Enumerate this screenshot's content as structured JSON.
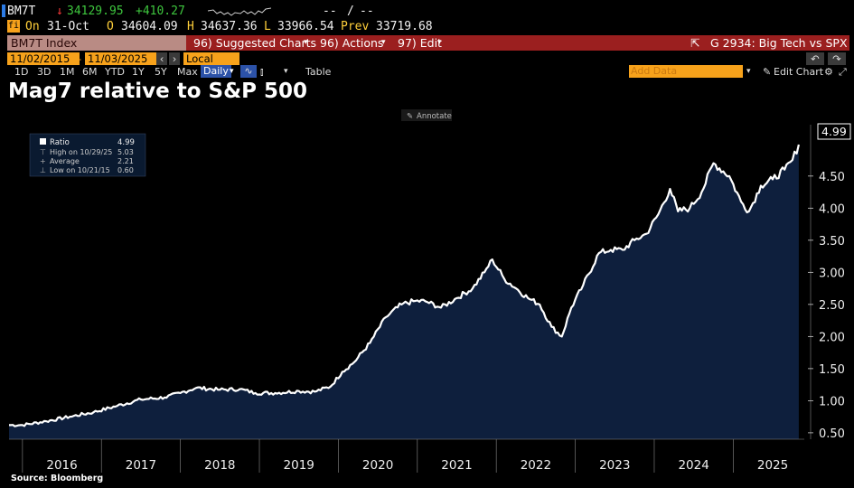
{
  "ticker": {
    "symbol": "BM7T",
    "arrow": "↓",
    "last": "34129.95",
    "change": "+410.27",
    "dash1": "--",
    "slash": "/",
    "dash2": "--"
  },
  "quote": {
    "icon_label": "fi",
    "on_label": "On",
    "date": "31-Oct",
    "open_label": "O",
    "open": "34604.09",
    "high_label": "H",
    "high": "34637.36",
    "low_label": "L",
    "low": "33966.54",
    "prev_label": "Prev",
    "prev": "33719.68"
  },
  "toolbar": {
    "index": "BM7T Index",
    "suggested": "96) Suggested Charts",
    "actions": "96) Actions",
    "edit": "97) Edit",
    "chart_name": "G 2934: Big Tech vs SPX"
  },
  "dates": {
    "start": "11/02/2015",
    "end": "11/03/2025",
    "currency": "Local CCY"
  },
  "periods": [
    "1D",
    "3D",
    "1M",
    "6M",
    "YTD",
    "1Y",
    "5Y",
    "Max"
  ],
  "frequency": "Daily",
  "table_label": "Table",
  "add_data_placeholder": "Add Data",
  "edit_chart": "Edit Chart",
  "annotate": "Annotate",
  "title": "Mag7 relative to S&P 500",
  "source": "Source: Bloomberg",
  "legend": {
    "ratio_label": "Ratio",
    "ratio_value": "4.99",
    "high_label": "High on 10/29/25",
    "high_value": "5.03",
    "avg_label": "Average",
    "avg_value": "2.21",
    "low_label": "Low on 10/21/15",
    "low_value": "0.60"
  },
  "colors": {
    "line": "#ffffff",
    "fill": "#0e1f3d",
    "accent": "#f7a21b",
    "toolbar_red": "#9b1f1f"
  },
  "chart_data": {
    "type": "area",
    "title": "Mag7 relative to S&P 500",
    "series": [
      {
        "name": "Ratio",
        "x": [
          2015.83,
          2016.0,
          2016.3,
          2016.6,
          2016.9,
          2017.2,
          2017.5,
          2017.8,
          2018.0,
          2018.2,
          2018.5,
          2018.75,
          2018.95,
          2019.2,
          2019.5,
          2019.7,
          2019.9,
          2020.05,
          2020.2,
          2020.4,
          2020.6,
          2020.8,
          2020.95,
          2021.1,
          2021.3,
          2021.5,
          2021.7,
          2021.85,
          2021.95,
          2022.1,
          2022.25,
          2022.4,
          2022.55,
          2022.7,
          2022.83,
          2022.95,
          2023.1,
          2023.3,
          2023.45,
          2023.6,
          2023.75,
          2023.9,
          2024.05,
          2024.2,
          2024.3,
          2024.45,
          2024.6,
          2024.75,
          2024.95,
          2025.1,
          2025.2,
          2025.35,
          2025.5,
          2025.65,
          2025.75,
          2025.83
        ],
        "values": [
          0.62,
          0.62,
          0.68,
          0.75,
          0.82,
          0.92,
          1.02,
          1.05,
          1.12,
          1.2,
          1.17,
          1.18,
          1.12,
          1.12,
          1.15,
          1.14,
          1.22,
          1.45,
          1.6,
          1.9,
          2.3,
          2.5,
          2.55,
          2.55,
          2.45,
          2.6,
          2.75,
          3.0,
          3.2,
          2.9,
          2.75,
          2.6,
          2.5,
          2.15,
          2.0,
          2.45,
          2.8,
          3.3,
          3.35,
          3.35,
          3.5,
          3.6,
          3.9,
          4.3,
          3.95,
          4.0,
          4.25,
          4.7,
          4.5,
          4.1,
          3.95,
          4.35,
          4.45,
          4.6,
          4.75,
          4.99
        ]
      }
    ],
    "xlabel": "",
    "ylabel": "",
    "xticks": [
      "2016",
      "2017",
      "2018",
      "2019",
      "2020",
      "2021",
      "2022",
      "2023",
      "2024",
      "2025"
    ],
    "yticks": [
      "0.50",
      "1.00",
      "1.50",
      "2.00",
      "2.50",
      "3.00",
      "3.50",
      "4.00",
      "4.50"
    ],
    "ylim": [
      0.4,
      5.3
    ],
    "xlim": [
      2015.83,
      2025.9
    ],
    "last_value_label": "4.99"
  }
}
